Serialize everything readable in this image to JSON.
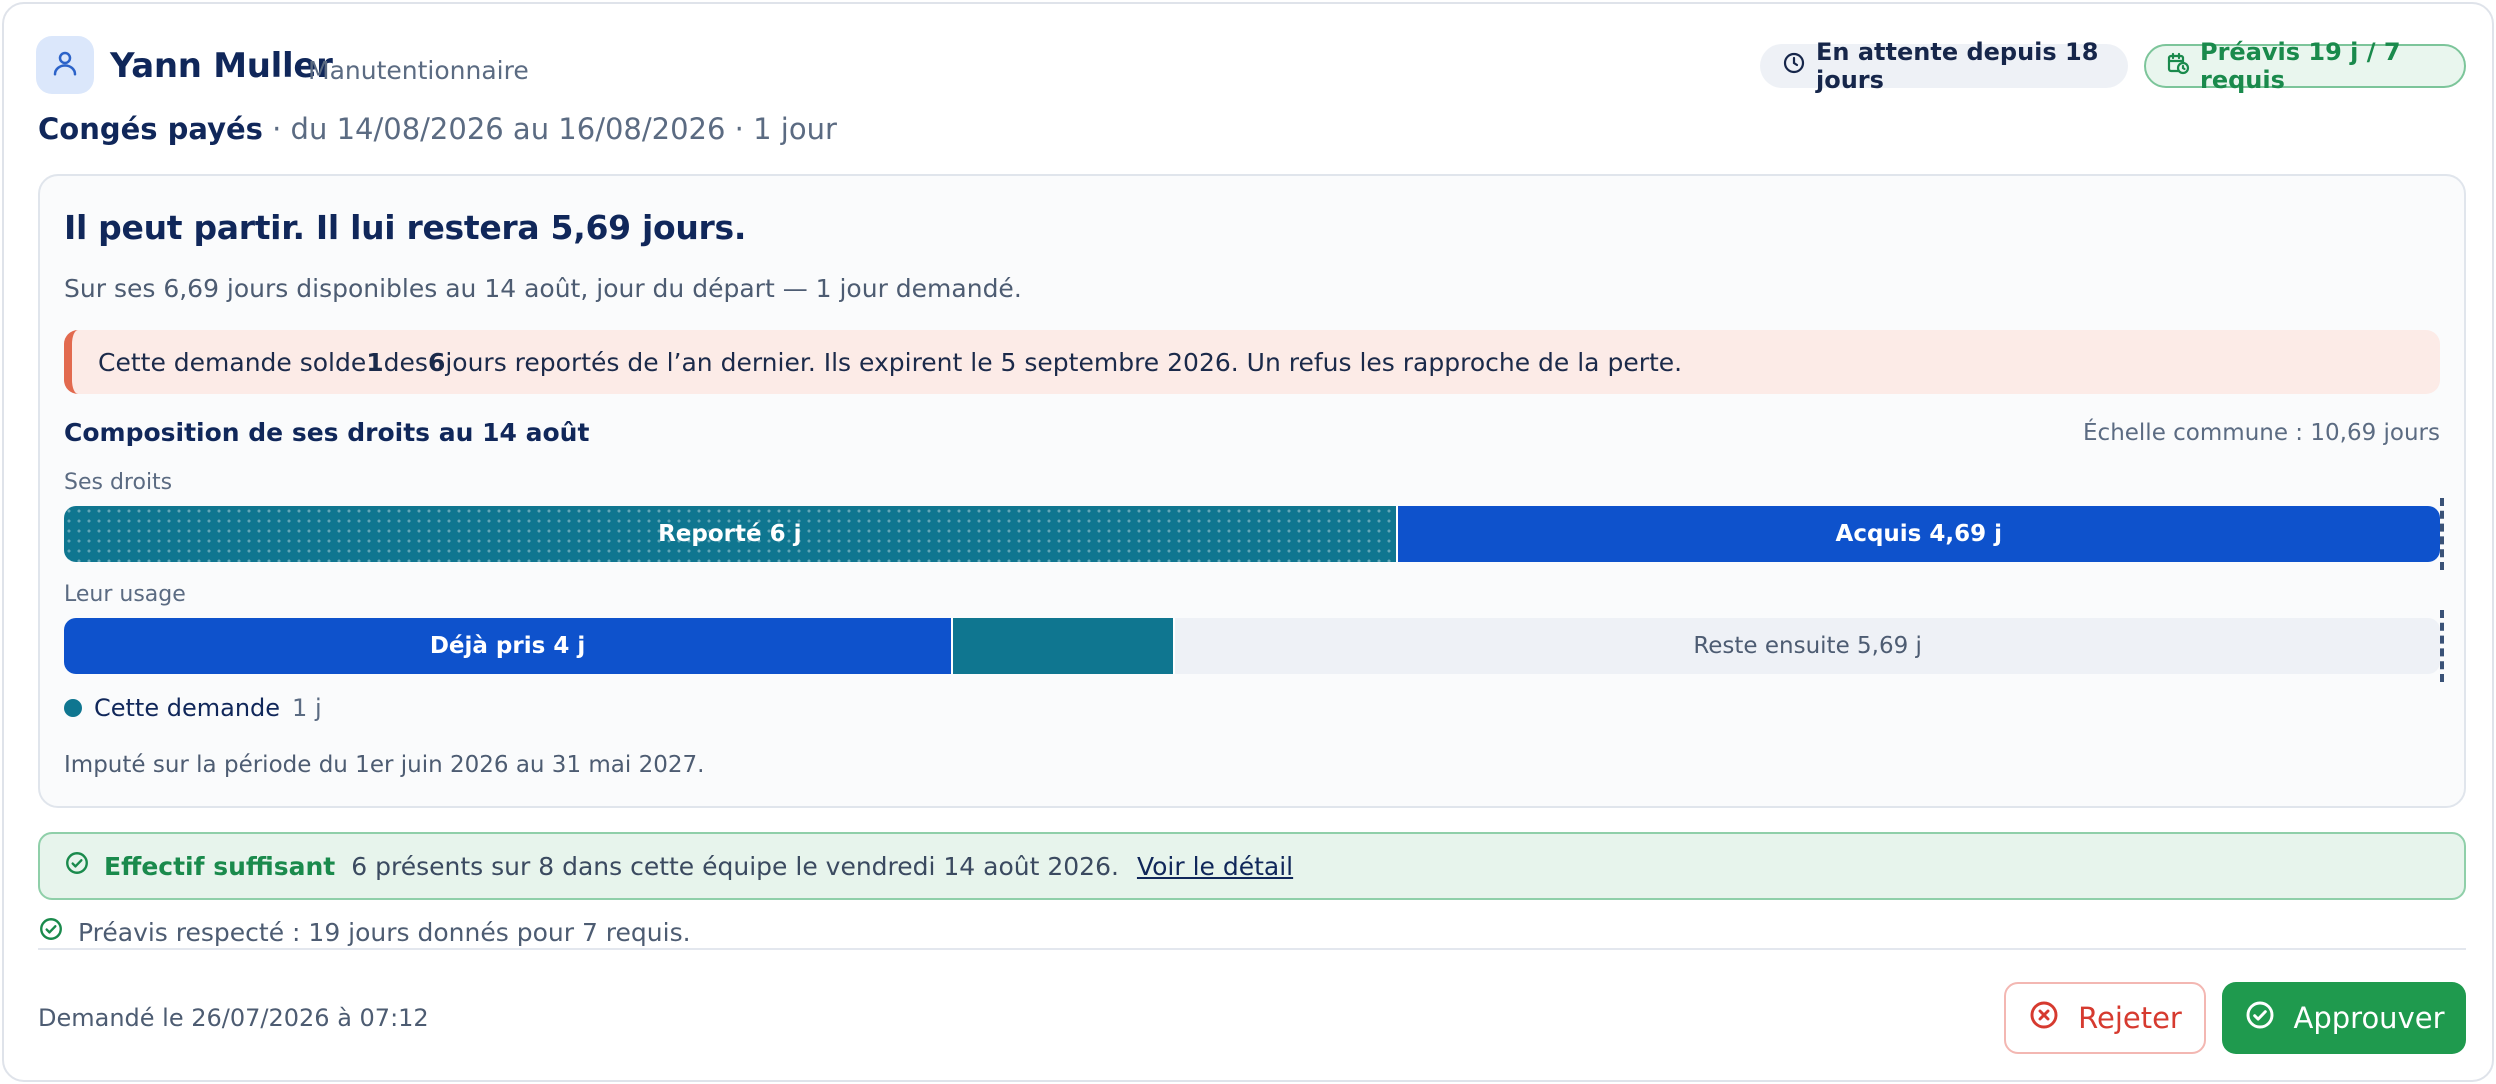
{
  "employee": {
    "name": "Yann Muller",
    "role": "Manutentionnaire",
    "avatar_icon": "user-icon"
  },
  "badges": {
    "waiting": "En attente depuis 18 jours",
    "waiting_icon": "clock-icon",
    "preavis": "Préavis 19 j / 7 requis",
    "preavis_icon": "calendar-clock-icon"
  },
  "leave": {
    "type": "Congés payés",
    "details": " · du 14/08/2026 au 16/08/2026 · 1 jour"
  },
  "summary": {
    "headline": "Il peut partir. Il lui restera 5,69 jours.",
    "subline": "Sur ses 6,69 jours disponibles au 14 août, jour du départ — 1 jour demandé."
  },
  "alert": {
    "p1": "Cette demande solde ",
    "n1": "1",
    "p2": " des ",
    "n2": "6",
    "p3": " jours reportés de l’an dernier. Ils expirent le 5 septembre 2026. Un refus les rapproche de la perte."
  },
  "composition": {
    "title": "Composition de ses droits au 14 août",
    "scale_label": "Échelle commune : 10,69 jours",
    "scale_total": 10.69,
    "rights_label": "Ses droits",
    "usage_label": "Leur usage",
    "rights": [
      {
        "key": "report",
        "label": "Reporté 6 j",
        "days": 6
      },
      {
        "key": "acquis",
        "label": "Acquis 4,69 j",
        "days": 4.69
      }
    ],
    "usage": [
      {
        "key": "pris",
        "label": "Déjà pris 4 j",
        "days": 4
      },
      {
        "key": "demande",
        "label": "",
        "days": 1
      },
      {
        "key": "reste",
        "label": "Reste ensuite 5,69 j",
        "days": 5.69
      }
    ],
    "legend_label": "Cette demande",
    "legend_amount": "1 j",
    "imputation": "Imputé sur la période du 1er juin 2026 au 31 mai 2027."
  },
  "staffing": {
    "status": "Effectif suffisant",
    "text": "6 présents sur 8 dans cette équipe le vendredi 14 août 2026.",
    "link": "Voir le détail",
    "icon": "check-circle-icon"
  },
  "notice": {
    "text": "Préavis respecté : 19 jours donnés pour 7 requis.",
    "icon": "check-circle-icon"
  },
  "footer": {
    "requested": "Demandé le 26/07/2026 à 07:12",
    "reject_label": "Rejeter",
    "reject_icon": "x-circle-icon",
    "approve_label": "Approuver",
    "approve_icon": "check-circle-icon"
  },
  "colors": {
    "primary_blue": "#0e52cc",
    "teal": "#0f7690",
    "success": "#1f9a4e",
    "danger": "#d63a2f",
    "alert_accent": "#e26a4f"
  }
}
